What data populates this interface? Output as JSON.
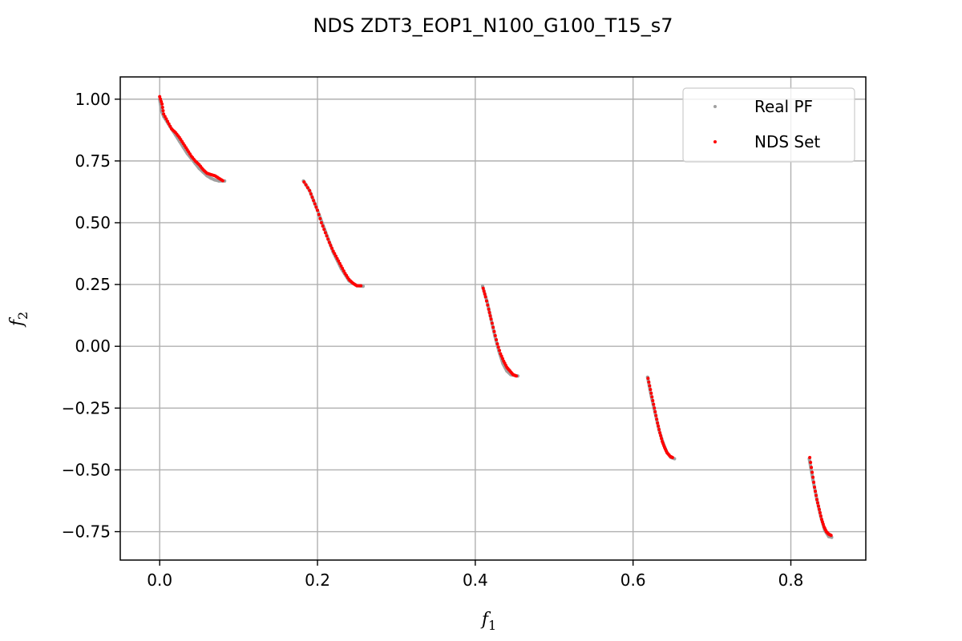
{
  "chart_data": {
    "type": "scatter",
    "title": "NDS ZDT3_EOP1_N100_G100_T15_s7",
    "xlabel": "f",
    "xlabel_sub": "1",
    "ylabel": "f",
    "ylabel_sub": "2",
    "xlim": [
      -0.05,
      0.895
    ],
    "ylim": [
      -0.865,
      1.09
    ],
    "xticks": [
      0.0,
      0.2,
      0.4,
      0.6,
      0.8
    ],
    "xtick_labels": [
      "0.0",
      "0.2",
      "0.4",
      "0.6",
      "0.8"
    ],
    "yticks": [
      1.0,
      0.75,
      0.5,
      0.25,
      0.0,
      -0.25,
      -0.5,
      -0.75
    ],
    "ytick_labels": [
      "1.00",
      "0.75",
      "0.50",
      "0.25",
      "0.00",
      "−0.25",
      "−0.50",
      "−0.75"
    ],
    "grid": true,
    "legend_position": "top-right",
    "series": [
      {
        "name": "Real PF",
        "color": "#a0a0a0",
        "segments": [
          {
            "x": [
              0.0,
              0.002,
              0.005,
              0.01,
              0.015,
              0.02,
              0.025,
              0.03,
              0.035,
              0.04,
              0.045,
              0.05,
              0.055,
              0.06,
              0.065,
              0.07,
              0.075,
              0.0823
            ],
            "y": [
              1.0,
              0.955,
              0.93,
              0.905,
              0.88,
              0.855,
              0.83,
              0.805,
              0.78,
              0.76,
              0.74,
              0.72,
              0.705,
              0.69,
              0.68,
              0.673,
              0.669,
              0.669
            ]
          },
          {
            "x": [
              0.1822,
              0.19,
              0.2,
              0.21,
              0.22,
              0.23,
              0.24,
              0.25,
              0.2578
            ],
            "y": [
              0.669,
              0.63,
              0.55,
              0.465,
              0.38,
              0.315,
              0.265,
              0.245,
              0.243
            ]
          },
          {
            "x": [
              0.4093,
              0.415,
              0.42,
              0.425,
              0.43,
              0.435,
              0.44,
              0.445,
              0.4539
            ],
            "y": [
              0.243,
              0.18,
              0.11,
              0.04,
              -0.02,
              -0.07,
              -0.1,
              -0.115,
              -0.12
            ]
          },
          {
            "x": [
              0.6184,
              0.623,
              0.628,
              0.633,
              0.638,
              0.643,
              0.648,
              0.6525
            ],
            "y": [
              -0.125,
              -0.2,
              -0.27,
              -0.34,
              -0.39,
              -0.43,
              -0.45,
              -0.455
            ]
          },
          {
            "x": [
              0.8233,
              0.828,
              0.833,
              0.838,
              0.843,
              0.848,
              0.8518
            ],
            "y": [
              -0.455,
              -0.54,
              -0.62,
              -0.69,
              -0.745,
              -0.77,
              -0.773
            ]
          }
        ]
      },
      {
        "name": "NDS Set",
        "color": "#ff0000",
        "segments": [
          {
            "x": [
              0.0,
              0.003,
              0.005,
              0.01,
              0.015,
              0.02,
              0.025,
              0.03,
              0.035,
              0.04,
              0.045,
              0.05,
              0.055,
              0.06,
              0.065,
              0.07,
              0.075,
              0.08
            ],
            "y": [
              1.01,
              0.98,
              0.94,
              0.91,
              0.88,
              0.865,
              0.845,
              0.82,
              0.795,
              0.77,
              0.75,
              0.735,
              0.715,
              0.7,
              0.695,
              0.69,
              0.68,
              0.67
            ]
          },
          {
            "x": [
              0.183,
              0.19,
              0.195,
              0.2,
              0.205,
              0.21,
              0.215,
              0.22,
              0.225,
              0.23,
              0.235,
              0.24,
              0.245,
              0.25,
              0.255
            ],
            "y": [
              0.665,
              0.63,
              0.59,
              0.55,
              0.5,
              0.46,
              0.42,
              0.385,
              0.355,
              0.325,
              0.295,
              0.27,
              0.255,
              0.245,
              0.245
            ]
          },
          {
            "x": [
              0.41,
              0.413,
              0.417,
              0.42,
              0.424,
              0.428,
              0.432,
              0.436,
              0.44,
              0.444,
              0.448,
              0.452
            ],
            "y": [
              0.235,
              0.2,
              0.15,
              0.11,
              0.06,
              0.01,
              -0.03,
              -0.06,
              -0.085,
              -0.1,
              -0.115,
              -0.12
            ]
          },
          {
            "x": [
              0.619,
              0.622,
              0.625,
              0.628,
              0.631,
              0.634,
              0.637,
              0.64,
              0.643,
              0.647,
              0.65
            ],
            "y": [
              -0.13,
              -0.175,
              -0.22,
              -0.265,
              -0.31,
              -0.35,
              -0.385,
              -0.41,
              -0.43,
              -0.445,
              -0.45
            ]
          },
          {
            "x": [
              0.824,
              0.827,
              0.83,
              0.833,
              0.836,
              0.839,
              0.842,
              0.845,
              0.848,
              0.851
            ],
            "y": [
              -0.45,
              -0.51,
              -0.57,
              -0.62,
              -0.66,
              -0.7,
              -0.73,
              -0.75,
              -0.76,
              -0.765
            ]
          }
        ]
      }
    ]
  }
}
